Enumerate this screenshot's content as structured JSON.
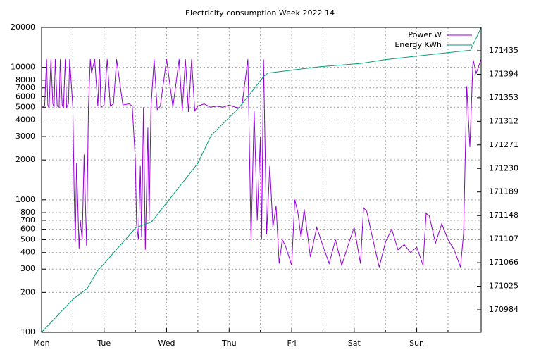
{
  "chart_data": {
    "type": "line",
    "title": "Electricity consumption Week 2022 14",
    "xlim": [
      0,
      7.03
    ],
    "xticks": [
      {
        "value": 0,
        "label": "Mon"
      },
      {
        "value": 1,
        "label": "Tue"
      },
      {
        "value": 2,
        "label": "Wed"
      },
      {
        "value": 3,
        "label": "Thu"
      },
      {
        "value": 4,
        "label": "Fri"
      },
      {
        "value": 5,
        "label": "Sat"
      },
      {
        "value": 6,
        "label": "Sun"
      }
    ],
    "xminorticks": [
      0.5,
      1.5,
      2.5,
      3.5,
      4.5,
      5.5,
      6.5
    ],
    "ylim": [
      100,
      20000
    ],
    "log_scale": true,
    "yticks": [
      100,
      200,
      300,
      400,
      500,
      600,
      700,
      800,
      1000,
      2000,
      3000,
      4000,
      5000,
      6000,
      7000,
      8000,
      10000,
      20000
    ],
    "y2lim": [
      170944.8,
      171475.4
    ],
    "y2ticks": [
      170984,
      171025,
      171066,
      171107,
      171148,
      171189,
      171230,
      171271,
      171312,
      171353,
      171394,
      171435
    ],
    "grid": true,
    "legend": "top-right",
    "series": [
      {
        "name": "Power W",
        "color": "#9400d3",
        "x": [
          0,
          0.05,
          0.08,
          0.1,
          0.12,
          0.15,
          0.18,
          0.2,
          0.22,
          0.25,
          0.28,
          0.3,
          0.33,
          0.35,
          0.38,
          0.4,
          0.43,
          0.45,
          0.5,
          0.52,
          0.54,
          0.56,
          0.6,
          0.62,
          0.65,
          0.68,
          0.72,
          0.75,
          0.78,
          0.8,
          0.85,
          0.9,
          0.93,
          0.95,
          1.0,
          1.05,
          1.1,
          1.15,
          1.2,
          1.3,
          1.4,
          1.45,
          1.5,
          1.52,
          1.55,
          1.58,
          1.6,
          1.63,
          1.66,
          1.7,
          1.72,
          1.75,
          1.8,
          1.85,
          1.9,
          2.0,
          2.1,
          2.2,
          2.25,
          2.3,
          2.35,
          2.4,
          2.45,
          2.5,
          2.6,
          2.7,
          2.8,
          2.9,
          3.0,
          3.1,
          3.2,
          3.3,
          3.35,
          3.4,
          3.45,
          3.5,
          3.52,
          3.55,
          3.6,
          3.65,
          3.7,
          3.75,
          3.8,
          3.85,
          3.9,
          4.0,
          4.05,
          4.1,
          4.15,
          4.2,
          4.3,
          4.4,
          4.5,
          4.6,
          4.7,
          4.8,
          4.9,
          5.0,
          5.1,
          5.15,
          5.2,
          5.3,
          5.4,
          5.5,
          5.6,
          5.7,
          5.8,
          5.9,
          6.0,
          6.1,
          6.15,
          6.2,
          6.3,
          6.4,
          6.5,
          6.6,
          6.7,
          6.75,
          6.8,
          6.85,
          6.9,
          6.95,
          7.03
        ],
        "values": [
          5000,
          5100,
          11500,
          5200,
          4900,
          11500,
          5300,
          5000,
          11500,
          5100,
          5000,
          11500,
          5200,
          4900,
          11500,
          5000,
          5300,
          11500,
          5000,
          1200,
          480,
          1900,
          430,
          700,
          500,
          2200,
          450,
          5000,
          11500,
          9000,
          11500,
          5100,
          11500,
          5000,
          5200,
          11500,
          5100,
          5300,
          11500,
          5200,
          5300,
          5100,
          2000,
          650,
          500,
          1800,
          520,
          5000,
          420,
          3500,
          700,
          5000,
          11500,
          4800,
          5100,
          11500,
          5000,
          11500,
          4700,
          11500,
          4600,
          11500,
          4700,
          5100,
          5300,
          5000,
          5100,
          5000,
          5200,
          5000,
          4900,
          11500,
          500,
          4700,
          700,
          3000,
          500,
          11500,
          550,
          1800,
          620,
          900,
          330,
          500,
          450,
          320,
          1000,
          800,
          520,
          850,
          370,
          620,
          450,
          330,
          500,
          320,
          450,
          620,
          330,
          870,
          820,
          500,
          310,
          480,
          600,
          420,
          460,
          400,
          440,
          320,
          790,
          760,
          470,
          660,
          500,
          420,
          310,
          560,
          7200,
          2500,
          11500,
          9000,
          11500
        ]
      },
      {
        "name": "Energy KWh",
        "color": "#009e73",
        "axis": "y2",
        "x": [
          0,
          0.5,
          0.73,
          0.89,
          1.51,
          1.76,
          2.5,
          2.71,
          3.16,
          3.56,
          3.62,
          4.07,
          4.46,
          5.13,
          5.47,
          6.37,
          6.86,
          7.03
        ],
        "values": [
          170944.8,
          171002,
          171021,
          171051,
          171127,
          171137,
          171239,
          171287,
          171336,
          171391,
          171396,
          171402,
          171407,
          171413,
          171419,
          171430,
          171436,
          171475
        ]
      }
    ]
  }
}
